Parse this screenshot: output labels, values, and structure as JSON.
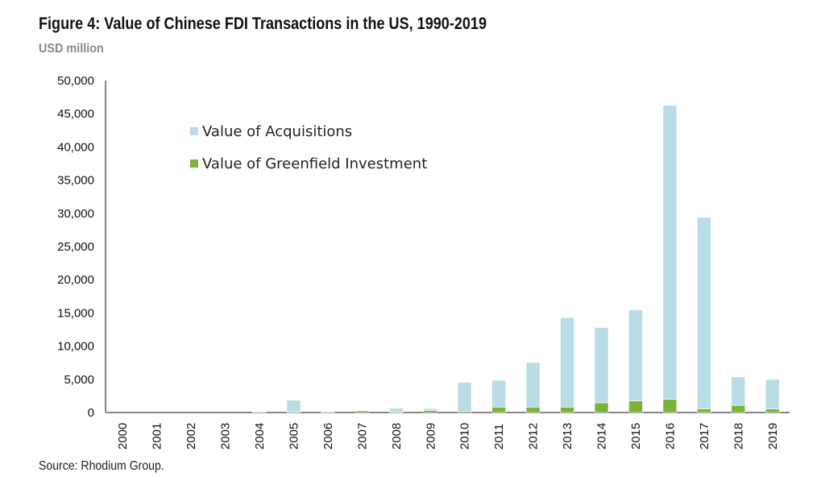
{
  "chart_data": {
    "type": "bar",
    "stacked": true,
    "title": "Figure 4: Value of Chinese FDI Transactions in the US, 1990-2019",
    "subtitle": "USD million",
    "source": "Source: Rhodium Group.",
    "categories": [
      "2000",
      "2001",
      "2002",
      "2003",
      "2004",
      "2005",
      "2006",
      "2007",
      "2008",
      "2009",
      "2010",
      "2011",
      "2012",
      "2013",
      "2014",
      "2015",
      "2016",
      "2017",
      "2018",
      "2019"
    ],
    "series": [
      {
        "name": "Value of Greenfield Investment",
        "color": "#7cb23a",
        "values": [
          0,
          0,
          0,
          0,
          30,
          100,
          30,
          250,
          50,
          280,
          200,
          810,
          810,
          810,
          1460,
          1750,
          1990,
          535,
          1060,
          535
        ]
      },
      {
        "name": "Value of Acquisitions",
        "color": "#b8dde4",
        "values": [
          0,
          0,
          0,
          0,
          120,
          1760,
          120,
          0,
          600,
          290,
          4340,
          4050,
          6720,
          13480,
          11340,
          13720,
          44270,
          28850,
          4280,
          4450
        ]
      }
    ],
    "ylim": [
      0,
      50000
    ],
    "yticks": [
      "0",
      "5,000",
      "10,000",
      "15,000",
      "20,000",
      "25,000",
      "30,000",
      "35,000",
      "40,000",
      "45,000",
      "50,000"
    ],
    "grid": false,
    "legend": "top-left"
  }
}
